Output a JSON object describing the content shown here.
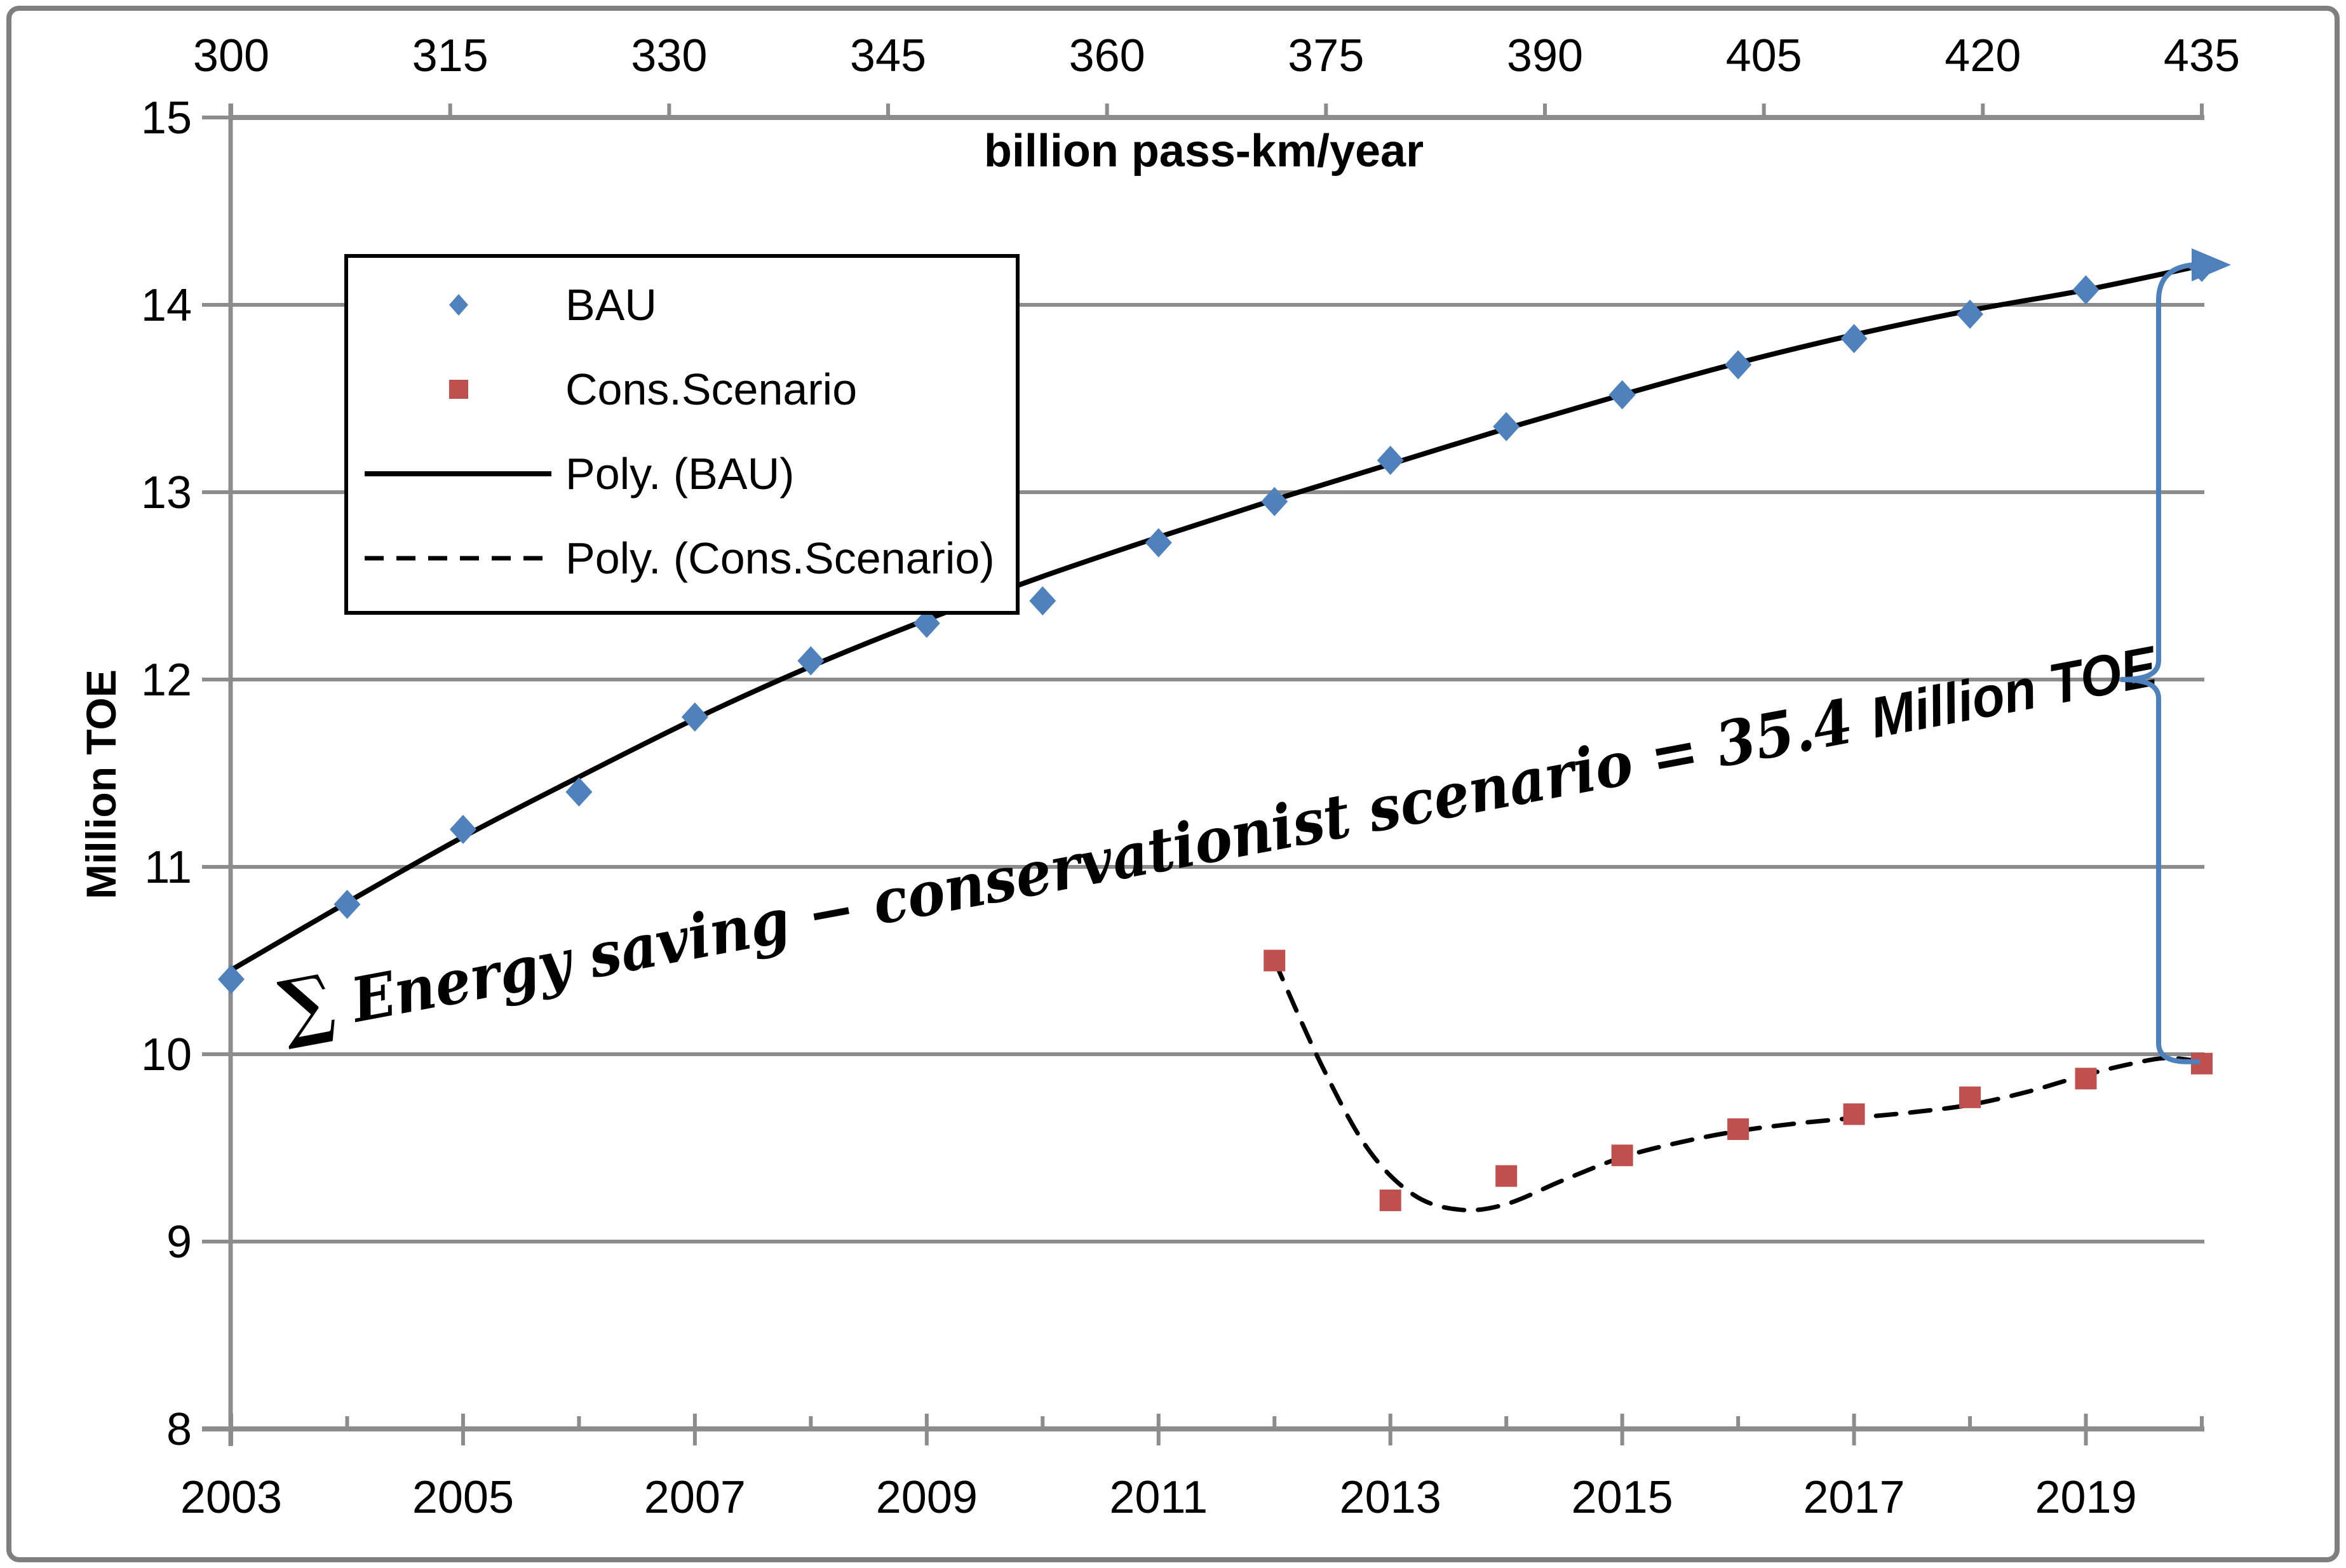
{
  "colors": {
    "bau": "#4F81BD",
    "cons": "#C0504D",
    "trend": "#000000",
    "grid": "#8C8C8C",
    "axis": "#8C8C8C",
    "border": "#7F7F7F",
    "brace": "#4E81BB",
    "text": "#000000",
    "legend_border": "#000000",
    "background": "#FFFFFF"
  },
  "legend": {
    "items": [
      {
        "label": "BAU",
        "marker": "diamond"
      },
      {
        "label": "Cons.Scenario",
        "marker": "square"
      },
      {
        "label": "Poly. (BAU)",
        "marker": "solid-line"
      },
      {
        "label": "Poly. (Cons.Scenario)",
        "marker": "dashed-line"
      }
    ]
  },
  "annotation": {
    "sigma": "∑",
    "main": " Energy saving − conservationist scenario = 35.4 ",
    "suffix": "Million TOE",
    "full_text": "∑ Energy saving − conservationist scenario = 35.4 Million TOE",
    "value": 35.4,
    "angle_deg": -10.6
  },
  "chart_data": {
    "type": "scatter",
    "title": "",
    "x_top_axis": {
      "label": "billion pass-km/year",
      "range": [
        300,
        435
      ],
      "ticks": [
        300,
        315,
        330,
        345,
        360,
        375,
        390,
        405,
        420,
        435
      ]
    },
    "x_bottom_axis": {
      "range": [
        2003,
        2020
      ],
      "labeled_ticks": [
        2003,
        2005,
        2007,
        2009,
        2011,
        2013,
        2015,
        2017,
        2019
      ],
      "minor_ticks": [
        2004,
        2006,
        2008,
        2010,
        2012,
        2014,
        2016,
        2018,
        2020
      ]
    },
    "y_axis": {
      "label": "Million TOE",
      "range": [
        8,
        15
      ],
      "ticks": [
        8,
        9,
        10,
        11,
        12,
        13,
        14,
        15
      ]
    },
    "grid": "horizontal-only",
    "legend_position": "inside-top-left",
    "series": [
      {
        "name": "BAU",
        "marker": "diamond",
        "color": "#4F81BD",
        "x": [
          2003,
          2004,
          2005,
          2006,
          2007,
          2008,
          2009,
          2010,
          2011,
          2012,
          2013,
          2014,
          2015,
          2016,
          2017,
          2018,
          2019,
          2020
        ],
        "y": [
          10.4,
          10.8,
          11.2,
          11.4,
          11.8,
          12.1,
          12.3,
          12.42,
          12.73,
          12.95,
          13.17,
          13.35,
          13.52,
          13.68,
          13.82,
          13.95,
          14.08,
          14.2
        ]
      },
      {
        "name": "Cons.Scenario",
        "marker": "square",
        "color": "#C0504D",
        "x": [
          2012,
          2013,
          2014,
          2015,
          2016,
          2017,
          2018,
          2019,
          2020
        ],
        "y": [
          10.5,
          9.22,
          9.35,
          9.46,
          9.6,
          9.68,
          9.77,
          9.87,
          9.95
        ]
      }
    ],
    "trendlines": [
      {
        "for": "BAU",
        "style": "solid",
        "samples": [
          [
            2003,
            10.45
          ],
          [
            2004,
            10.81
          ],
          [
            2005,
            11.16
          ],
          [
            2006,
            11.48
          ],
          [
            2007,
            11.79
          ],
          [
            2008,
            12.07
          ],
          [
            2009,
            12.32
          ],
          [
            2010,
            12.55
          ],
          [
            2011,
            12.76
          ],
          [
            2012,
            12.96
          ],
          [
            2013,
            13.15
          ],
          [
            2014,
            13.34
          ],
          [
            2015,
            13.52
          ],
          [
            2016,
            13.69
          ],
          [
            2017,
            13.84
          ],
          [
            2018,
            13.97
          ],
          [
            2019,
            14.08
          ],
          [
            2020,
            14.21
          ]
        ]
      },
      {
        "for": "Cons.Scenario",
        "style": "dashed",
        "samples": [
          [
            2012,
            10.5
          ],
          [
            2012.4,
            9.95
          ],
          [
            2012.8,
            9.5
          ],
          [
            2013.2,
            9.25
          ],
          [
            2013.6,
            9.17
          ],
          [
            2014,
            9.2
          ],
          [
            2014.5,
            9.33
          ],
          [
            2015,
            9.45
          ],
          [
            2015.5,
            9.53
          ],
          [
            2016,
            9.59
          ],
          [
            2016.5,
            9.63
          ],
          [
            2017,
            9.66
          ],
          [
            2017.5,
            9.69
          ],
          [
            2018,
            9.73
          ],
          [
            2018.5,
            9.8
          ],
          [
            2019,
            9.89
          ],
          [
            2019.4,
            9.95
          ],
          [
            2019.7,
            9.98
          ],
          [
            2020,
            9.96
          ]
        ]
      }
    ],
    "brace": {
      "at_year": 2020,
      "from_value": 14.2,
      "to_value": 9.95,
      "pointer_value": 12.0
    }
  }
}
